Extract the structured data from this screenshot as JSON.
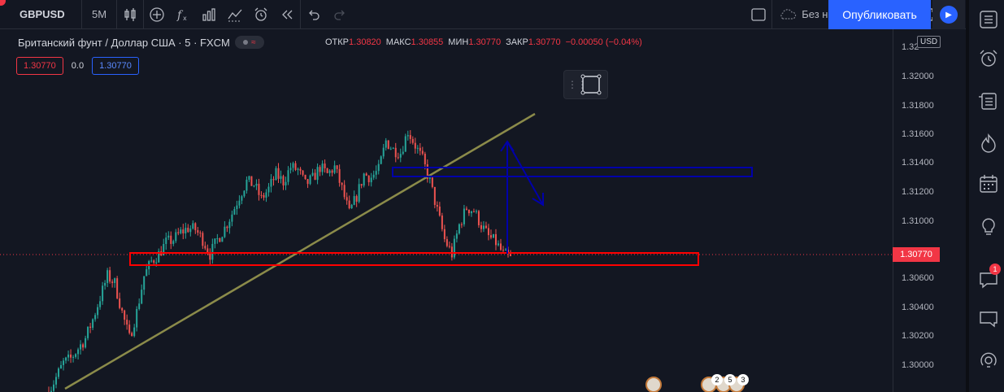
{
  "toolbar": {
    "symbol": "GBPUSD",
    "interval": "5M",
    "layout_name": "Без названия",
    "publish_label": "Опубликовать"
  },
  "legend": {
    "title": "Британский фунт / Доллар США · 5 · FXCM",
    "open_label": "ОТКР",
    "open": "1.30820",
    "high_label": "МАКС",
    "high": "1.30855",
    "low_label": "МИН",
    "low": "1.30770",
    "close_label": "ЗАКР",
    "close": "1.30770",
    "change": "−0.00050 (−0.04%)",
    "bid": "1.30770",
    "spread": "0.0",
    "ask": "1.30770"
  },
  "price_axis": {
    "currency": "USD",
    "ticks": [
      "1.32",
      "1.32000",
      "1.31800",
      "1.31600",
      "1.31400",
      "1.31200",
      "1.31000",
      "1.30600",
      "1.30400",
      "1.30200",
      "1.30000"
    ],
    "last_price": "1.30770"
  },
  "events": {
    "counts": [
      "2",
      "5",
      "3"
    ]
  },
  "right_rail": {
    "notification_count": "1"
  },
  "colors": {
    "background": "#131722",
    "up": "#26a69a",
    "down": "#ef5350",
    "accent": "#2962ff",
    "trendline": "#8b8b4a",
    "support_box": "#ff0000",
    "resistance_box": "#0000aa"
  },
  "chart_data": {
    "type": "candlestick",
    "symbol": "GBPUSD",
    "timeframe": "5",
    "ylim": [
      1.2985,
      1.3235
    ],
    "close_path": [
      1.2985,
      1.2995,
      1.3005,
      1.3008,
      1.3015,
      1.3022,
      1.3035,
      1.305,
      1.3065,
      1.306,
      1.304,
      1.3022,
      1.304,
      1.3065,
      1.3075,
      1.308,
      1.3088,
      1.309,
      1.3095,
      1.3098,
      1.3097,
      1.309,
      1.308,
      1.309,
      1.3098,
      1.3108,
      1.312,
      1.313,
      1.3128,
      1.3118,
      1.3125,
      1.3135,
      1.313,
      1.314,
      1.3138,
      1.3128,
      1.3132,
      1.314,
      1.3135,
      1.314,
      1.3125,
      1.3108,
      1.312,
      1.3135,
      1.3133,
      1.3138,
      1.3158,
      1.3152,
      1.315,
      1.3165,
      1.3155,
      1.3145,
      1.313,
      1.311,
      1.309,
      1.308,
      1.31,
      1.3112,
      1.311,
      1.31,
      1.3092,
      1.3088,
      1.308,
      1.3077
    ]
  }
}
